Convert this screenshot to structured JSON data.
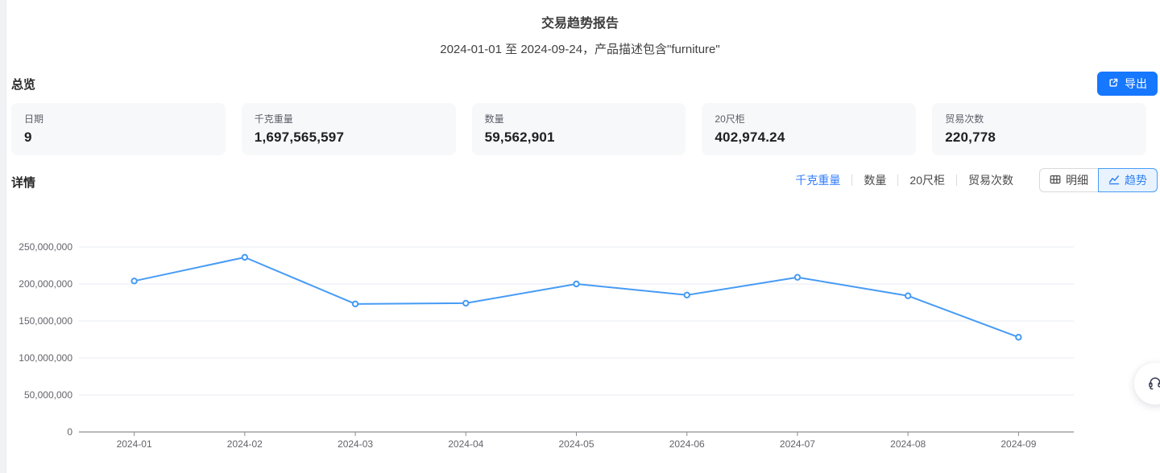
{
  "header": {
    "title": "交易趋势报告",
    "subtitle": "2024-01-01 至 2024-09-24，产品描述包含\"furniture\""
  },
  "overview": {
    "heading": "总览",
    "export_label": "导出",
    "cards": [
      {
        "label": "日期",
        "value": "9"
      },
      {
        "label": "千克重量",
        "value": "1,697,565,597"
      },
      {
        "label": "数量",
        "value": "59,562,901"
      },
      {
        "label": "20尺柜",
        "value": "402,974.24"
      },
      {
        "label": "贸易次数",
        "value": "220,778"
      }
    ]
  },
  "details": {
    "heading": "详情",
    "metric_tabs": [
      {
        "label": "千克重量",
        "active": true
      },
      {
        "label": "数量",
        "active": false
      },
      {
        "label": "20尺柜",
        "active": false
      },
      {
        "label": "贸易次数",
        "active": false
      }
    ],
    "view_toggle": [
      {
        "label": "明细",
        "icon": "table-grid-icon",
        "active": false
      },
      {
        "label": "趋势",
        "icon": "line-chart-icon",
        "active": true
      }
    ]
  },
  "chart_data": {
    "type": "line",
    "title": "",
    "xlabel": "",
    "ylabel": "",
    "x": [
      "2024-01",
      "2024-02",
      "2024-03",
      "2024-04",
      "2024-05",
      "2024-06",
      "2024-07",
      "2024-08",
      "2024-09"
    ],
    "series": [
      {
        "name": "千克重量",
        "values": [
          204000000,
          236000000,
          173000000,
          174000000,
          200000000,
          185000000,
          209000000,
          184000000,
          128000000
        ]
      }
    ],
    "ylim": [
      0,
      250000000
    ],
    "y_tick_step": 50000000,
    "grid": true,
    "legend": "none",
    "line_color": "#469bf5",
    "marker": "hollow-circle"
  },
  "icons": {
    "export": "export-icon",
    "detail_view": "table-grid-icon",
    "trend_view": "line-chart-icon",
    "support": "headset-icon"
  },
  "colors": {
    "accent_blue": "#1677ff",
    "tab_active_blue": "#337eff",
    "line_blue": "#469bf5",
    "toggle_active_bg": "#e9f3ff",
    "card_bg": "#f7f8fa",
    "page_bg": "#ffffff"
  }
}
